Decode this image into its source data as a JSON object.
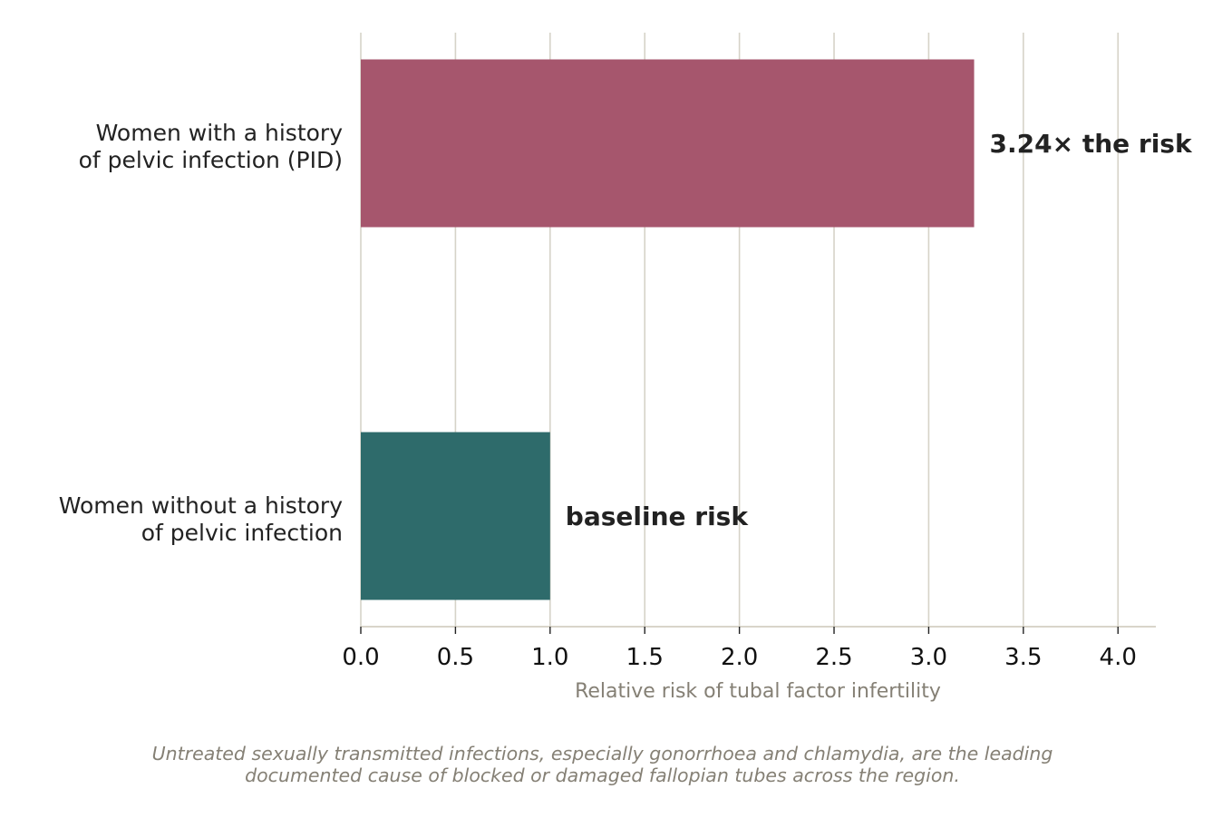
{
  "chart_data": {
    "type": "bar",
    "orientation": "horizontal",
    "categories": [
      [
        "Women with a history",
        "of pelvic infection (PID)"
      ],
      [
        "Women without a history",
        "of pelvic infection"
      ]
    ],
    "values": [
      3.24,
      1.0
    ],
    "bar_labels": [
      "3.24× the risk",
      "baseline risk"
    ],
    "colors": [
      "#a6566d",
      "#2e6b6b"
    ],
    "xlabel": "Relative risk of tubal factor infertility",
    "xlim": [
      0,
      4.2
    ],
    "xticks": [
      0.0,
      0.5,
      1.0,
      1.5,
      2.0,
      2.5,
      3.0,
      3.5,
      4.0
    ],
    "xtick_labels": [
      "0.0",
      "0.5",
      "1.0",
      "1.5",
      "2.0",
      "2.5",
      "3.0",
      "3.5",
      "4.0"
    ],
    "grid": "vertical",
    "grid_color": "#d6d3c8",
    "axis_color": "#d9d5ca"
  },
  "caption": {
    "line1": "Untreated sexually transmitted infections, especially gonorrhoea and chlamydia, are the leading",
    "line2": "documented cause of blocked or damaged fallopian tubes across the region."
  }
}
